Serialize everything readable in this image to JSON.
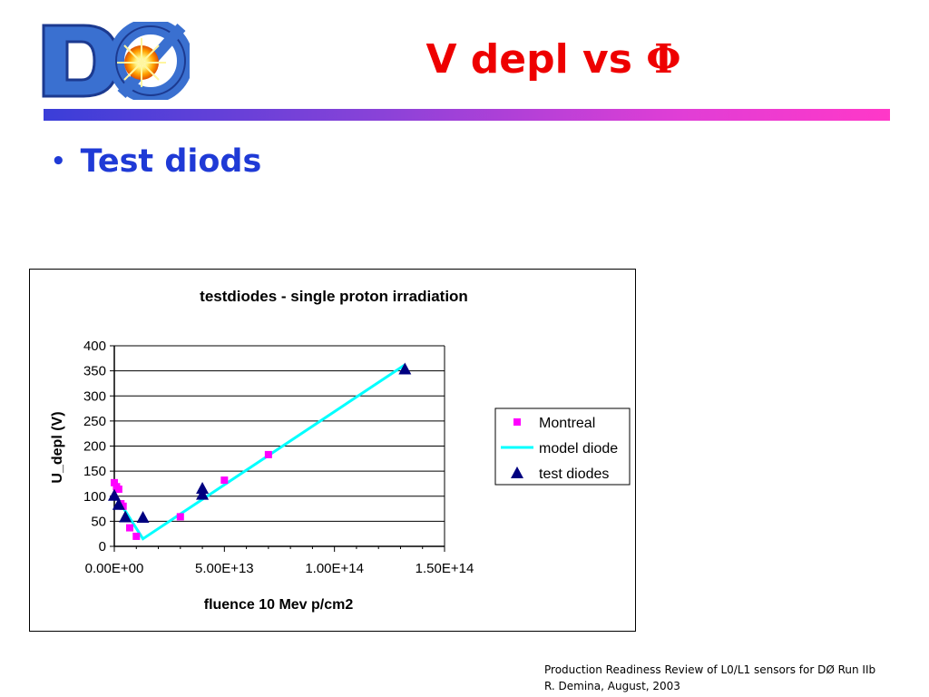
{
  "logo": {
    "alt_text": "DØ"
  },
  "title": {
    "text": "V depl vs ",
    "symbol": "Φ",
    "color": "#ee0000"
  },
  "bullet": {
    "marker": "•",
    "text": "Test diods",
    "color": "#1f3ad6"
  },
  "chart_data": {
    "type": "scatter",
    "title": "testdiodes - single proton irradiation",
    "xlabel": "fluence 10 Mev p/cm2",
    "ylabel": "U_depl (V)",
    "xlim": [
      0,
      150000000000000.0
    ],
    "ylim": [
      0,
      400
    ],
    "x_ticks": [
      0,
      50000000000000.0,
      100000000000000.0,
      150000000000000.0
    ],
    "x_tick_labels": [
      "0.00E+00",
      "5.00E+13",
      "1.00E+14",
      "1.50E+14"
    ],
    "y_ticks": [
      0,
      50,
      100,
      150,
      200,
      250,
      300,
      350,
      400
    ],
    "y_tick_labels": [
      "0",
      "50",
      "100",
      "150",
      "200",
      "250",
      "300",
      "350",
      "400"
    ],
    "grid": "horizontal",
    "legend_position": "right",
    "series": [
      {
        "name": "Montreal",
        "kind": "marker-square",
        "color": "#ff00ff",
        "points": [
          [
            0,
            127
          ],
          [
            1000000000000.0,
            119
          ],
          [
            2000000000000.0,
            114
          ],
          [
            3000000000000.0,
            85
          ],
          [
            4000000000000.0,
            80
          ],
          [
            7000000000000.0,
            37
          ],
          [
            10000000000000.0,
            20
          ],
          [
            30000000000000.0,
            59
          ],
          [
            50000000000000.0,
            132
          ],
          [
            70000000000000.0,
            183
          ]
        ]
      },
      {
        "name": "model diode",
        "kind": "line",
        "color": "#00ffff",
        "points": [
          [
            0,
            105
          ],
          [
            13000000000000.0,
            15
          ],
          [
            132000000000000.0,
            362
          ]
        ]
      },
      {
        "name": "test diodes",
        "kind": "marker-triangle",
        "color": "#000080",
        "points": [
          [
            0,
            100
          ],
          [
            2000000000000.0,
            82
          ],
          [
            5000000000000.0,
            57
          ],
          [
            13000000000000.0,
            56
          ],
          [
            40000000000000.0,
            102
          ],
          [
            40000000000000.0,
            114
          ],
          [
            132000000000000.0,
            352
          ]
        ]
      }
    ]
  },
  "footer": {
    "line1": "Production Readiness Review of L0/L1 sensors for DØ Run IIb",
    "line2": "R. Demina, August, 2003"
  }
}
